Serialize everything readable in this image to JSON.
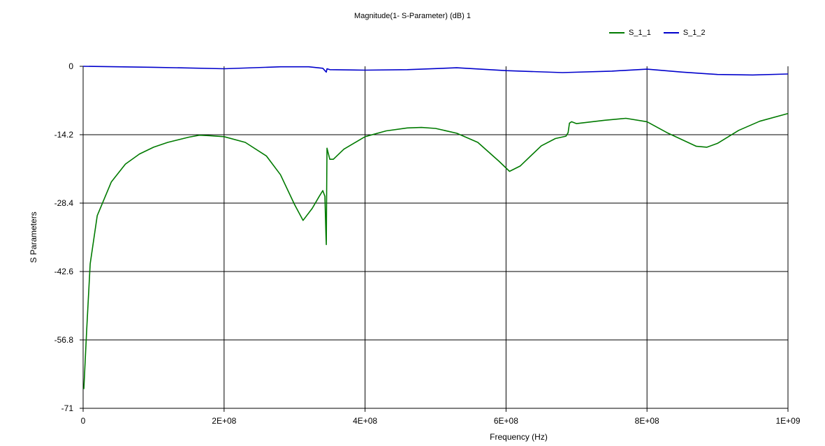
{
  "chart_data": {
    "type": "line",
    "title": "Magnitude(1- S-Parameter) (dB) 1",
    "xlabel": "Frequency (Hz)",
    "ylabel": "S Parameters",
    "xlim": [
      0,
      1000000000
    ],
    "ylim": [
      -71,
      0
    ],
    "x_ticks": [
      "0",
      "2E+08",
      "4E+08",
      "6E+08",
      "8E+08",
      "1E+09"
    ],
    "y_ticks": [
      "0",
      "-14.2",
      "-28.4",
      "-42.6",
      "-56.8",
      "-71"
    ],
    "grid": true,
    "legend_position": "top-right",
    "series": [
      {
        "name": "S_1_1",
        "color": "#007a00",
        "x": [
          1000000,
          5000000,
          10000000,
          20000000,
          40000000,
          60000000,
          80000000,
          100000000,
          120000000,
          150000000,
          165000000,
          180000000,
          200000000,
          230000000,
          260000000,
          280000000,
          300000000,
          312000000,
          325000000,
          335000000,
          340000000,
          343000000,
          344500000,
          345000000,
          345500000,
          346000000,
          350000000,
          355000000,
          370000000,
          400000000,
          430000000,
          460000000,
          480000000,
          500000000,
          530000000,
          560000000,
          590000000,
          605000000,
          620000000,
          650000000,
          670000000,
          685000000,
          688000000,
          690000000,
          693000000,
          700000000,
          740000000,
          770000000,
          800000000,
          830000000,
          870000000,
          885000000,
          900000000,
          930000000,
          960000000,
          1000000000
        ],
        "values": [
          -67,
          -55,
          -41,
          -31,
          -24,
          -20.3,
          -18.2,
          -16.8,
          -15.8,
          -14.7,
          -14.3,
          -14.4,
          -14.6,
          -15.8,
          -18.6,
          -22.5,
          -28.7,
          -32,
          -29.5,
          -27,
          -25.8,
          -27,
          -35,
          -37,
          -26,
          -17,
          -19.3,
          -19.3,
          -17.2,
          -14.6,
          -13.4,
          -12.8,
          -12.7,
          -12.9,
          -13.9,
          -15.8,
          -19.7,
          -21.8,
          -20.7,
          -16.5,
          -15,
          -14.5,
          -13.8,
          -11.8,
          -11.5,
          -11.9,
          -11.2,
          -10.8,
          -11.5,
          -13.9,
          -16.6,
          -16.8,
          -16,
          -13.3,
          -11.4,
          -9.8
        ]
      },
      {
        "name": "S_1_2",
        "color": "#0000cc",
        "x": [
          0,
          100000000,
          200000000,
          280000000,
          320000000,
          340000000,
          345000000,
          346000000,
          350000000,
          400000000,
          460000000,
          530000000,
          600000000,
          680000000,
          750000000,
          800000000,
          850000000,
          900000000,
          950000000,
          1000000000
        ],
        "values": [
          0,
          -0.2,
          -0.5,
          -0.1,
          -0.1,
          -0.4,
          -1.2,
          -0.5,
          -0.7,
          -0.8,
          -0.7,
          -0.3,
          -0.9,
          -1.3,
          -1,
          -0.6,
          -1.2,
          -1.7,
          -1.8,
          -1.6
        ]
      }
    ]
  }
}
